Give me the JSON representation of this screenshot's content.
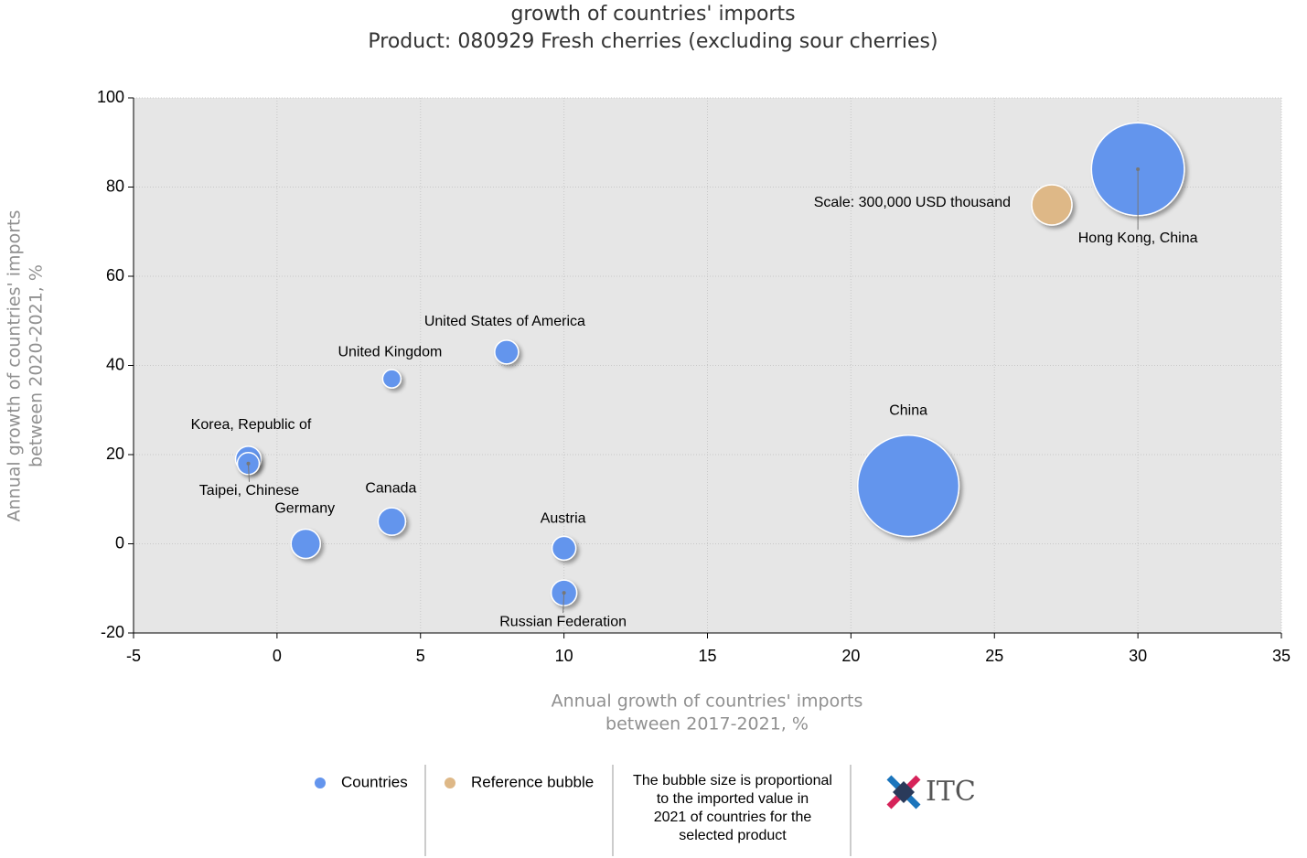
{
  "chart_data": {
    "type": "bubble",
    "title": "growth of countries' imports",
    "subtitle": "Product: 080929 Fresh cherries (excluding sour cherries)",
    "x_label": [
      "Annual growth of countries' imports",
      "between 2017-2021, %"
    ],
    "y_label": [
      "Annual growth of countries' imports",
      "between 2020-2021, %"
    ],
    "xlim": [
      -5,
      35
    ],
    "xticks": [
      -5,
      0,
      5,
      10,
      15,
      20,
      25,
      30,
      35
    ],
    "ylim": [
      -20,
      100
    ],
    "yticks": [
      -20,
      0,
      20,
      40,
      60,
      80,
      100
    ],
    "grid": true,
    "series": [
      {
        "name": "Countries",
        "color": "#6495ed",
        "labels": [
          "Hong Kong, China",
          "China",
          "United States of America",
          "United Kingdom",
          "Korea, Republic of",
          "Taipei, Chinese",
          "Germany",
          "Canada",
          "Austria",
          "Russian Federation"
        ],
        "x": [
          30,
          22,
          8,
          4,
          -1,
          -1,
          1,
          4,
          10,
          10
        ],
        "values": [
          84,
          13,
          43,
          37,
          19,
          18,
          0,
          5,
          -1,
          -11
        ],
        "sizes": [
          1600000,
          1900000,
          105000,
          62000,
          121000,
          89000,
          159000,
          140000,
          105000,
          121000
        ]
      },
      {
        "name": "Reference bubble",
        "color": "#deb887",
        "labels": [
          "Scale: 300,000 USD thousand"
        ],
        "x": [
          27
        ],
        "values": [
          76
        ],
        "sizes": [
          300000
        ]
      }
    ],
    "note": [
      "The bubble size is proportional",
      "to the imported value in",
      "2021 of countries for the",
      "selected product"
    ],
    "logo": "ITC"
  }
}
